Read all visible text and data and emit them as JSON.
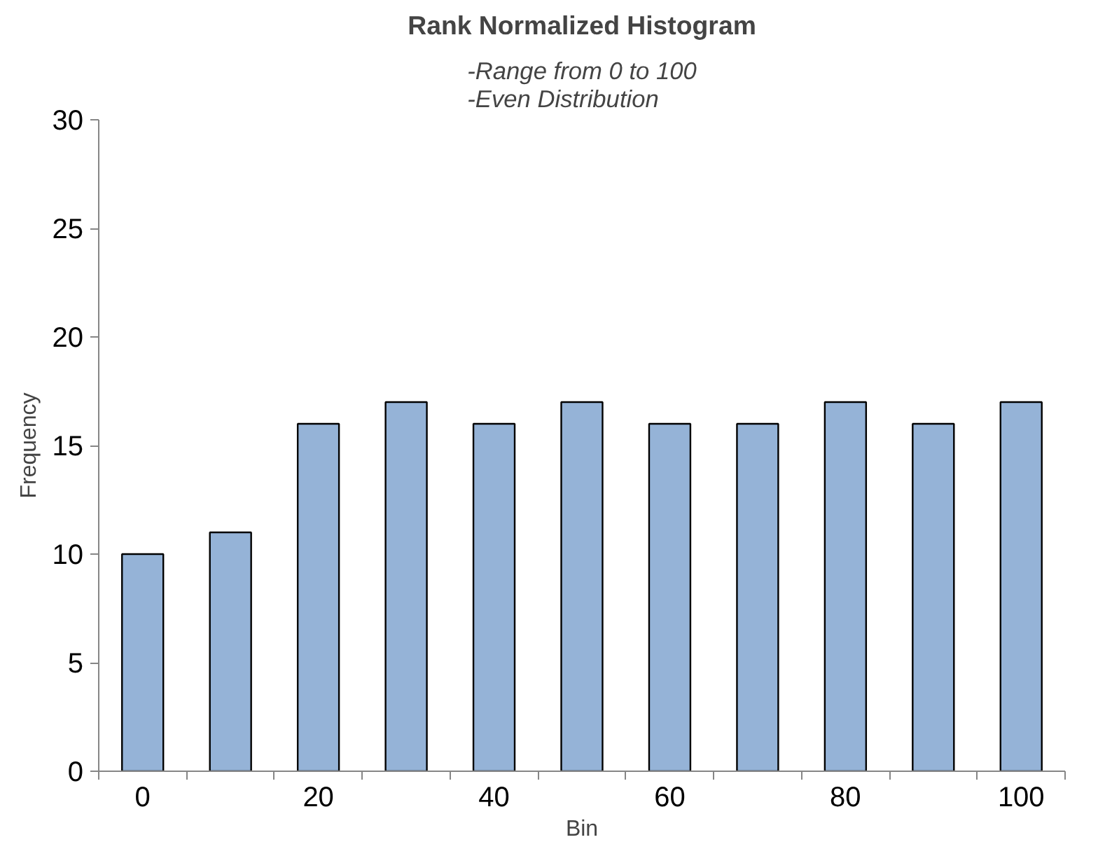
{
  "chart_data": {
    "type": "bar",
    "title": "Rank Normalized Histogram",
    "subtitle": "-Range from 0 to 100\n-Even Distribution",
    "xlabel": "Bin",
    "ylabel": "Frequency",
    "categories": [
      "0",
      null,
      "20",
      null,
      "40",
      null,
      "60",
      null,
      "80",
      null,
      "100"
    ],
    "values": [
      10,
      11,
      16,
      17,
      16,
      17,
      16,
      16,
      17,
      16,
      17
    ],
    "color": "#95b3d7",
    "ylim": [
      0,
      30
    ],
    "yticks": [
      0,
      5,
      10,
      15,
      20,
      25,
      30
    ],
    "grid": false
  }
}
